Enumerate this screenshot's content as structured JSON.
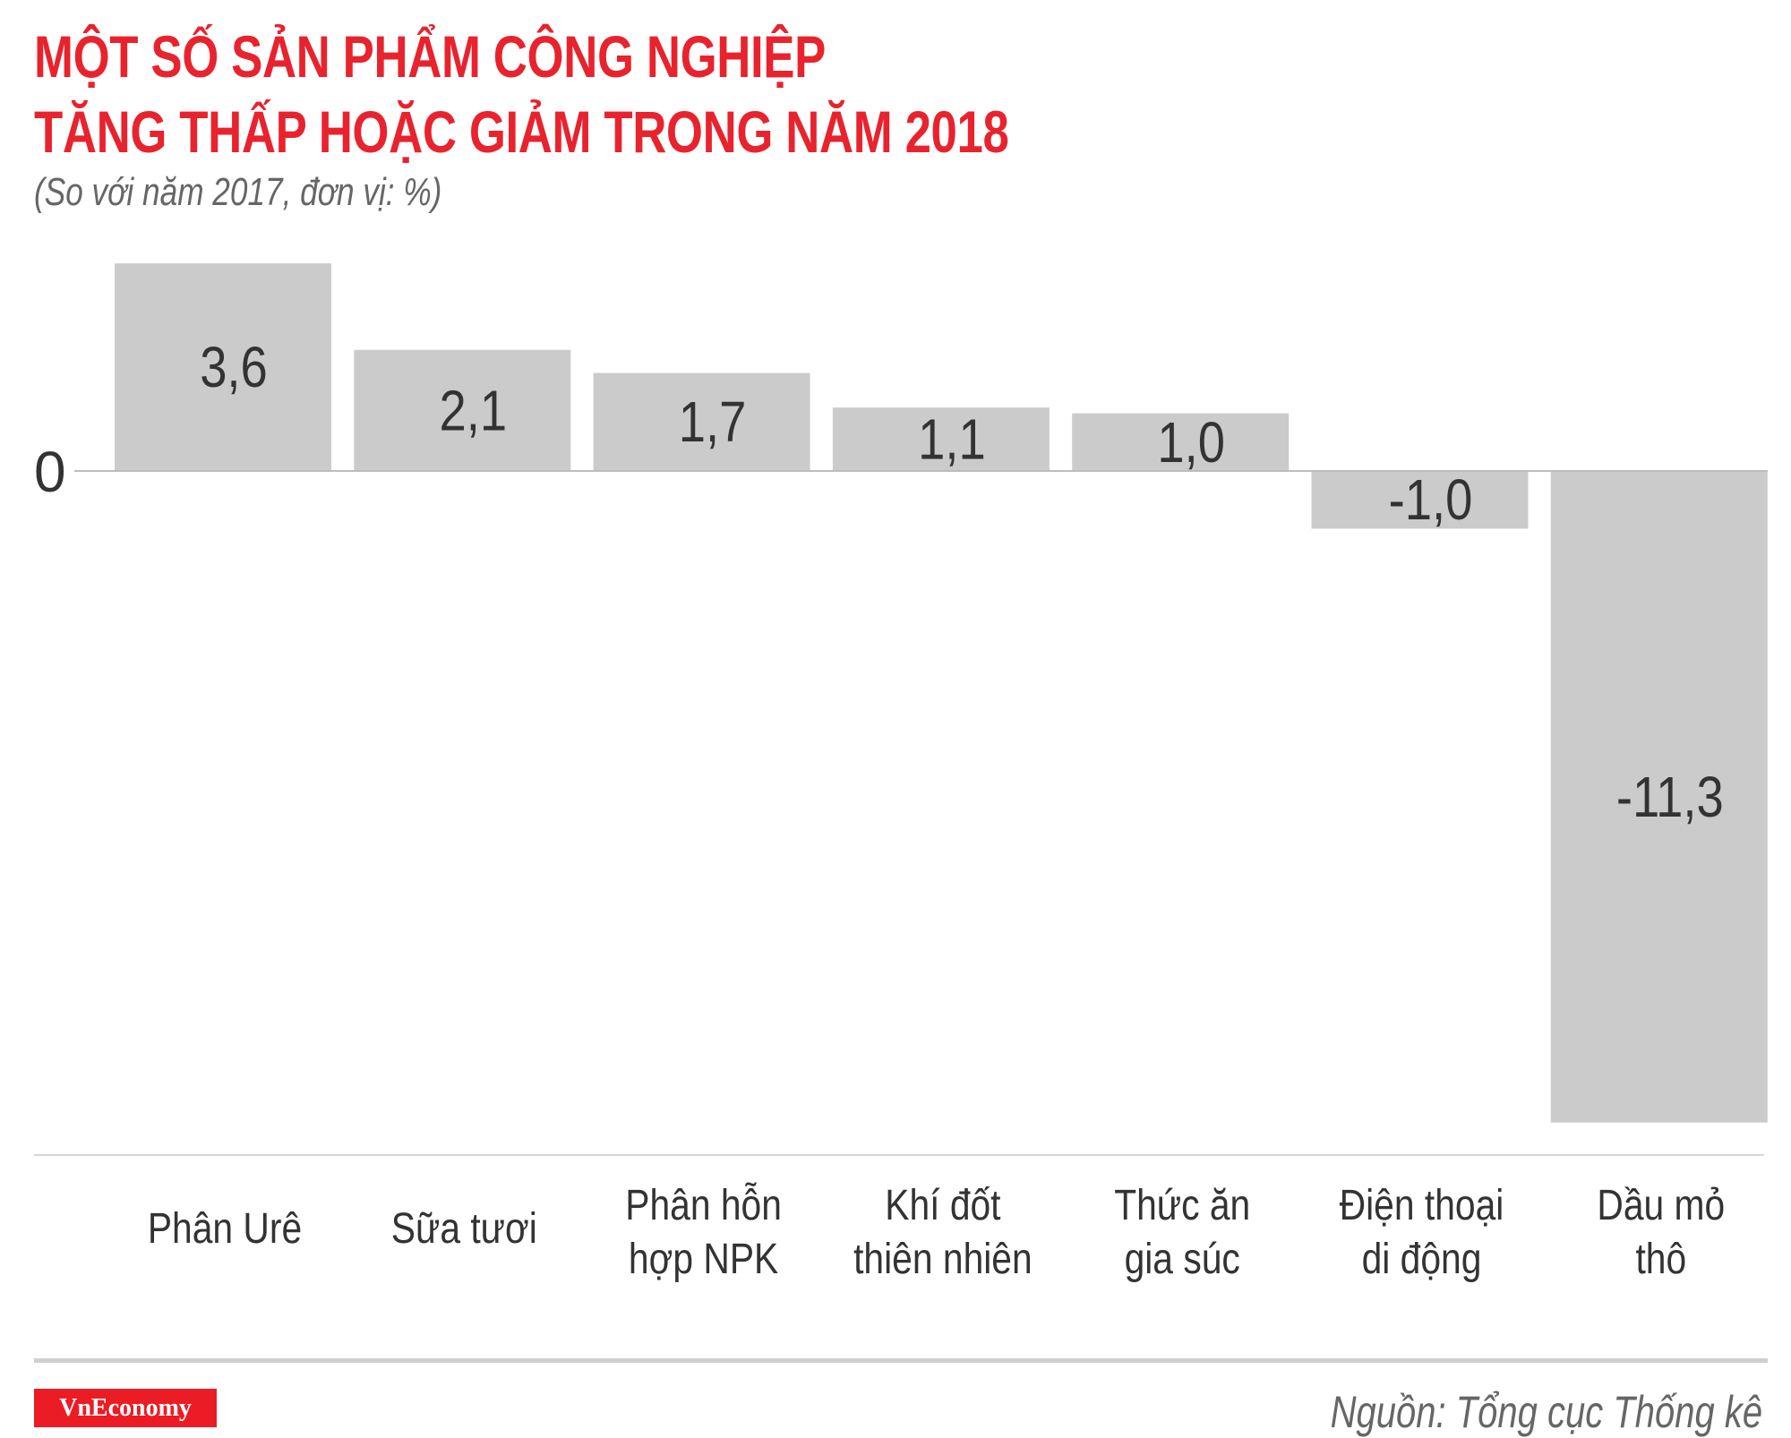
{
  "title_line1": "MỘT SỐ SẢN PHẨM CÔNG NGHIỆP",
  "title_line2": "TĂNG THẤP HOẶC GIẢM TRONG NĂM 2018",
  "subtitle": "(So với năm 2017, đơn vị: %)",
  "source": "Nguồn: Tổng cục Thống kê",
  "logo": "VnEconomy",
  "colors": {
    "title": "#e8232d",
    "bar": "#cccbcb",
    "text": "#333333"
  },
  "chart_data": {
    "type": "bar",
    "title": "MỘT SỐ SẢN PHẨM CÔNG NGHIỆP TĂNG THẤP HOẶC GIẢM TRONG NĂM 2018",
    "subtitle": "(So với năm 2017, đơn vị: %)",
    "categories": [
      [
        "Phân Urê"
      ],
      [
        "Sữa tươi"
      ],
      [
        "Phân hỗn",
        "hợp NPK"
      ],
      [
        "Khí đốt",
        "thiên nhiên"
      ],
      [
        "Thức ăn",
        "gia súc"
      ],
      [
        "Điện thoại",
        "di động"
      ],
      [
        "Dầu mỏ",
        "thô"
      ]
    ],
    "values": [
      3.6,
      2.1,
      1.7,
      1.1,
      1.0,
      -1.0,
      -11.3
    ],
    "data_labels": [
      "3,6",
      "2,1",
      "1,7",
      "1,1",
      "1,0",
      "-1,0",
      "-11,3"
    ],
    "y_tick_labels": [
      "0"
    ],
    "ylim": [
      -11.3,
      3.6
    ],
    "grid": false,
    "legend": "none"
  }
}
